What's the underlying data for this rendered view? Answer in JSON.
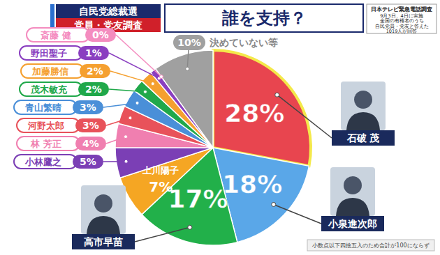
{
  "chart_data": {
    "type": "pie",
    "title": "誰を支持？",
    "subtitle": [
      "自民党総裁選",
      "党員・党友調査"
    ],
    "categories": [
      "石破 茂",
      "小泉進次郎",
      "高市早苗",
      "上川陽子",
      "小林鷹之",
      "林 芳正",
      "河野太郎",
      "青山繁晴",
      "茂木敏充",
      "加藤勝信",
      "野田聖子",
      "斎藤 健",
      "決めていない等"
    ],
    "values": [
      28,
      18,
      17,
      7,
      5,
      4,
      3,
      3,
      2,
      2,
      1,
      0,
      10
    ],
    "value_labels": [
      "28%",
      "18%",
      "17%",
      "7%",
      "5%",
      "4%",
      "3%",
      "3%",
      "2%",
      "2%",
      "1%",
      "0%",
      "10%"
    ],
    "colors": [
      "#e8454f",
      "#5aa7e8",
      "#22b04a",
      "#f5a623",
      "#7b3fb5",
      "#f07fb0",
      "#e8525a",
      "#4a8fd8",
      "#20a84a",
      "#f5a030",
      "#8a3fc0",
      "#f48cbf",
      "#a0a0a0"
    ],
    "data_labels": true,
    "annotations": {
      "source": [
        "日本テレビ緊急電話調査",
        "9月3日、4日に実施",
        "全国の有権者のうち",
        "自民党員・党友と答えた",
        "1019人が回答"
      ],
      "note": "小数点以下四捨五入のため合計が100にならず"
    }
  }
}
